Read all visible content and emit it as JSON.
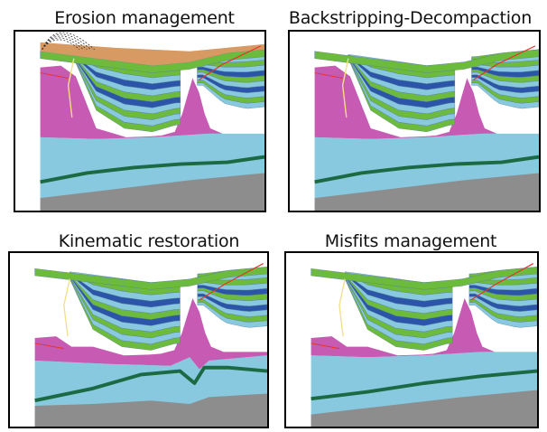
{
  "panels": [
    {
      "title": "Erosion management"
    },
    {
      "title": "Backstripping-Decompaction"
    },
    {
      "title": "Kinematic restoration"
    },
    {
      "title": "Misfits management"
    }
  ],
  "colors": {
    "salt": "#c75bb4",
    "blue_layer": "#88c9e0",
    "green_layer": "#6cbb3c",
    "dark_blue_layer": "#2b55a8",
    "eroded_layer": "#d79a63",
    "thick_line": "#1c6a43",
    "basement": "#8d8d8d",
    "fault": "#e2342b"
  }
}
